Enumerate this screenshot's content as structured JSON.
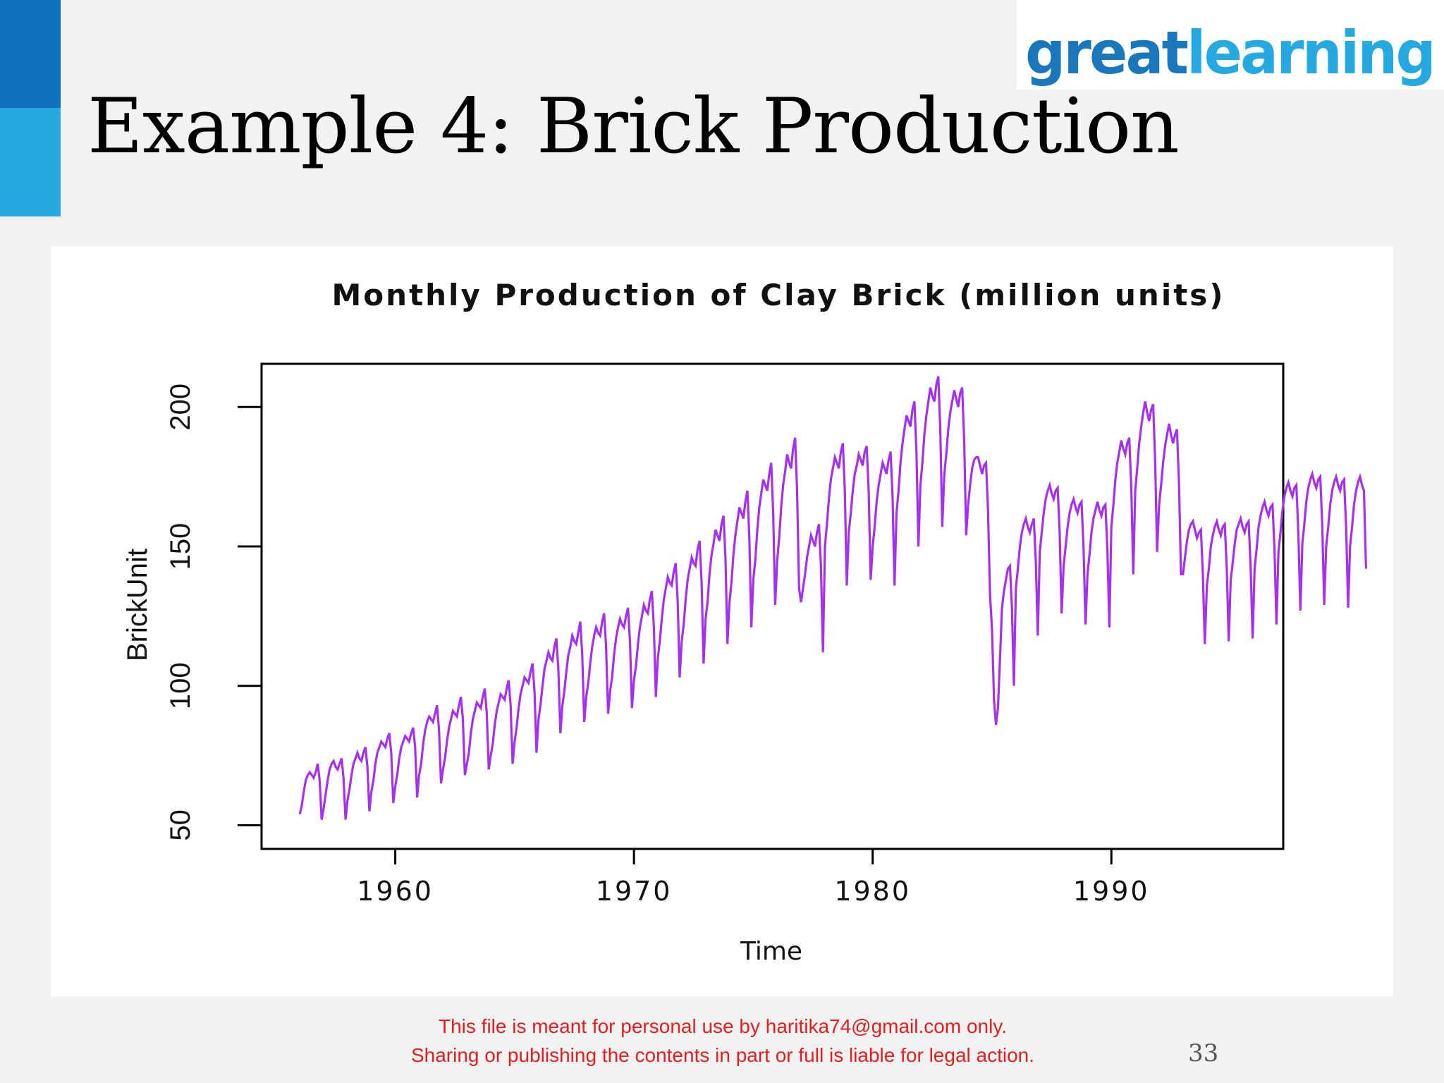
{
  "slide": {
    "title": "Example 4: Brick Production",
    "logo": {
      "part1": "great",
      "part2": "learning",
      "color1": "#1a77bc",
      "color2": "#26a9e0"
    },
    "notice_line1": "This file is meant for personal use by haritika74@gmail.com only.",
    "notice_line2": "Sharing or publishing the contents in part or full is liable for legal action.",
    "page_number": "33",
    "accent_colors": [
      "#0f72bd",
      "#27a8e1"
    ]
  },
  "chart_data": {
    "type": "line",
    "title": "Monthly Production of Clay Brick (million units)",
    "xlabel": "Time",
    "ylabel": "BrickUnit",
    "line_color": "#a431f0",
    "frequency": "monthly",
    "x_ticks": [
      1960,
      1970,
      1980,
      1990
    ],
    "y_ticks": [
      50,
      100,
      150,
      200
    ],
    "xlim": [
      1954.4,
      1997.2
    ],
    "ylim": [
      41.5,
      215.5
    ],
    "grid": false,
    "legend": "none",
    "series": [
      {
        "start": 1956.0,
        "values": [
          54,
          57,
          62,
          66,
          68,
          69,
          68,
          67,
          69,
          72,
          66,
          52,
          56,
          61,
          66,
          70,
          72,
          73,
          71,
          70,
          72,
          74,
          67,
          52,
          59,
          63,
          68,
          72,
          74,
          76,
          74,
          73,
          76,
          78,
          71,
          55,
          62,
          66,
          72,
          76,
          78,
          80,
          79,
          78,
          81,
          83,
          76,
          58,
          64,
          68,
          74,
          78,
          80,
          82,
          81,
          80,
          83,
          85,
          78,
          60,
          68,
          72,
          79,
          84,
          87,
          89,
          88,
          87,
          90,
          93,
          84,
          65,
          70,
          74,
          80,
          85,
          88,
          91,
          90,
          89,
          93,
          96,
          88,
          68,
          72,
          76,
          83,
          88,
          91,
          94,
          93,
          92,
          96,
          99,
          90,
          70,
          75,
          79,
          86,
          91,
          94,
          97,
          96,
          95,
          99,
          102,
          93,
          72,
          80,
          85,
          92,
          97,
          100,
          103,
          102,
          101,
          105,
          108,
          98,
          76,
          88,
          93,
          100,
          106,
          109,
          112,
          110,
          109,
          114,
          117,
          106,
          83,
          93,
          98,
          105,
          111,
          114,
          118,
          116,
          115,
          119,
          123,
          111,
          87,
          96,
          101,
          108,
          114,
          118,
          121,
          119,
          118,
          123,
          126,
          114,
          90,
          98,
          103,
          111,
          117,
          121,
          124,
          122,
          121,
          125,
          128,
          116,
          92,
          102,
          107,
          115,
          121,
          125,
          129,
          127,
          126,
          131,
          134,
          121,
          96,
          110,
          116,
          124,
          131,
          135,
          139,
          137,
          136,
          141,
          144,
          130,
          103,
          116,
          122,
          131,
          138,
          142,
          146,
          144,
          143,
          149,
          152,
          137,
          108,
          124,
          130,
          140,
          147,
          151,
          156,
          154,
          152,
          158,
          161,
          146,
          115,
          130,
          137,
          147,
          154,
          159,
          164,
          162,
          160,
          166,
          170,
          153,
          121,
          138,
          145,
          156,
          164,
          169,
          174,
          172,
          170,
          176,
          180,
          162,
          129,
          145,
          153,
          164,
          172,
          177,
          183,
          180,
          178,
          185,
          189,
          170,
          135,
          130,
          135,
          140,
          146,
          150,
          154,
          152,
          150,
          155,
          158,
          143,
          112,
          150,
          158,
          167,
          174,
          178,
          182,
          180,
          178,
          184,
          187,
          170,
          136,
          155,
          162,
          170,
          176,
          179,
          183,
          181,
          179,
          184,
          186,
          170,
          138,
          150,
          157,
          166,
          172,
          176,
          180,
          178,
          176,
          181,
          184,
          168,
          136,
          162,
          170,
          180,
          187,
          192,
          197,
          195,
          193,
          199,
          202,
          184,
          150,
          172,
          180,
          190,
          197,
          202,
          207,
          204,
          202,
          208,
          211,
          192,
          157,
          176,
          183,
          192,
          198,
          202,
          206,
          203,
          200,
          205,
          207,
          188,
          154,
          165,
          172,
          178,
          181,
          182,
          182,
          179,
          176,
          179,
          180,
          163,
          133,
          120,
          95,
          86,
          92,
          110,
          128,
          134,
          138,
          142,
          143,
          128,
          100,
          135,
          142,
          150,
          155,
          158,
          160,
          157,
          155,
          158,
          160,
          145,
          118,
          148,
          155,
          162,
          167,
          170,
          172,
          169,
          167,
          170,
          171,
          155,
          126,
          143,
          150,
          157,
          162,
          165,
          167,
          164,
          162,
          165,
          166,
          150,
          122,
          140,
          147,
          155,
          160,
          163,
          166,
          163,
          161,
          164,
          165,
          149,
          121,
          157,
          165,
          174,
          180,
          184,
          188,
          185,
          183,
          187,
          189,
          171,
          140,
          170,
          178,
          187,
          193,
          198,
          202,
          198,
          195,
          199,
          201,
          181,
          148,
          165,
          172,
          180,
          186,
          190,
          194,
          190,
          187,
          190,
          192,
          172,
          140,
          140,
          146,
          152,
          156,
          158,
          159,
          156,
          153,
          155,
          156,
          140,
          115,
          136,
          142,
          150,
          154,
          157,
          159,
          156,
          154,
          157,
          158,
          142,
          116,
          138,
          144,
          151,
          156,
          158,
          160,
          157,
          155,
          158,
          159,
          143,
          117,
          142,
          149,
          157,
          161,
          164,
          166,
          163,
          161,
          164,
          165,
          149,
          122,
          148,
          155,
          163,
          168,
          171,
          173,
          170,
          168,
          171,
          172,
          155,
          127,
          151,
          158,
          166,
          171,
          174,
          176,
          173,
          171,
          174,
          175,
          158,
          129,
          150,
          157,
          165,
          170,
          173,
          175,
          172,
          170,
          173,
          174,
          157,
          128,
          150,
          157,
          165,
          170,
          173,
          175,
          172,
          170,
          142
        ]
      }
    ]
  }
}
